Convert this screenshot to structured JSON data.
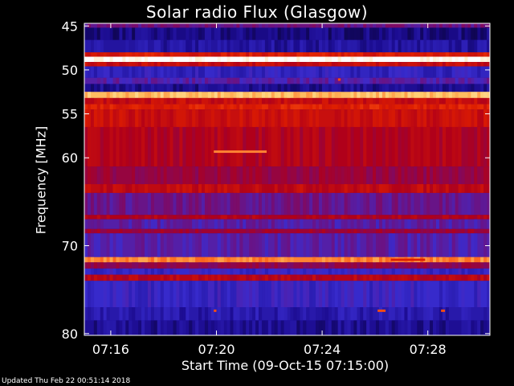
{
  "title": "Solar radio Flux (Glasgow)",
  "footer": "Updated Thu Feb 22 00:51:14 2018",
  "chart_data": {
    "type": "heatmap",
    "title": "Solar radio Flux (Glasgow)",
    "xlabel": "Start Time (09-Oct-15 07:15:00)",
    "ylabel": "Frequency [MHz]",
    "x_range": [
      "07:15:00",
      "07:30:00"
    ],
    "xlim_minutes": [
      15.0,
      30.35
    ],
    "ylim": [
      44.7,
      80.2
    ],
    "y_ticks": [
      45,
      50,
      55,
      60,
      70,
      80
    ],
    "x_ticks": [
      "07:16",
      "07:20",
      "07:24",
      "07:28"
    ],
    "x_tick_minutes": [
      16,
      20,
      24,
      28
    ],
    "colormap": [
      "#000000",
      "#1a0a8c",
      "#3a2dd0",
      "#7a0a6a",
      "#b0001a",
      "#e02000",
      "#ff6a20",
      "#ffd070",
      "#ffffff"
    ],
    "bands": [
      {
        "freq_from": 44.7,
        "freq_to": 45.2,
        "level": 0.35
      },
      {
        "freq_from": 45.2,
        "freq_to": 46.6,
        "level": 0.12
      },
      {
        "freq_from": 46.6,
        "freq_to": 48.0,
        "level": 0.16
      },
      {
        "freq_from": 48.0,
        "freq_to": 48.5,
        "level": 0.6
      },
      {
        "freq_from": 48.5,
        "freq_to": 49.1,
        "level": 1.0
      },
      {
        "freq_from": 49.1,
        "freq_to": 49.6,
        "level": 0.55
      },
      {
        "freq_from": 49.6,
        "freq_to": 50.9,
        "level": 0.22
      },
      {
        "freq_from": 50.9,
        "freq_to": 51.6,
        "level": 0.3
      },
      {
        "freq_from": 51.6,
        "freq_to": 52.5,
        "level": 0.14
      },
      {
        "freq_from": 52.5,
        "freq_to": 53.2,
        "level": 0.85
      },
      {
        "freq_from": 53.2,
        "freq_to": 53.9,
        "level": 0.55
      },
      {
        "freq_from": 53.9,
        "freq_to": 54.5,
        "level": 0.62
      },
      {
        "freq_from": 54.5,
        "freq_to": 56.5,
        "level": 0.56
      },
      {
        "freq_from": 56.5,
        "freq_to": 61.0,
        "level": 0.5
      },
      {
        "freq_from": 61.0,
        "freq_to": 63.0,
        "level": 0.44
      },
      {
        "freq_from": 63.0,
        "freq_to": 64.0,
        "level": 0.54
      },
      {
        "freq_from": 64.0,
        "freq_to": 66.5,
        "level": 0.34
      },
      {
        "freq_from": 66.5,
        "freq_to": 67.0,
        "level": 0.5
      },
      {
        "freq_from": 67.0,
        "freq_to": 68.1,
        "level": 0.3
      },
      {
        "freq_from": 68.1,
        "freq_to": 68.6,
        "level": 0.46
      },
      {
        "freq_from": 68.6,
        "freq_to": 71.3,
        "level": 0.3
      },
      {
        "freq_from": 71.3,
        "freq_to": 71.9,
        "level": 0.78
      },
      {
        "freq_from": 71.9,
        "freq_to": 72.6,
        "level": 0.42
      },
      {
        "freq_from": 72.6,
        "freq_to": 73.3,
        "level": 0.24
      },
      {
        "freq_from": 73.3,
        "freq_to": 74.0,
        "level": 0.52
      },
      {
        "freq_from": 74.0,
        "freq_to": 77.0,
        "level": 0.24
      },
      {
        "freq_from": 77.0,
        "freq_to": 78.5,
        "level": 0.18
      },
      {
        "freq_from": 78.5,
        "freq_to": 80.2,
        "level": 0.14
      }
    ],
    "features": [
      {
        "freq": 59.3,
        "t_from": 19.9,
        "t_to": 21.9,
        "level": 0.78
      },
      {
        "freq": 71.6,
        "t_from": 26.6,
        "t_to": 27.9,
        "level": 0.62
      },
      {
        "freq": 77.4,
        "t_from": 19.9,
        "t_to": 20.0,
        "level": 0.7
      },
      {
        "freq": 77.4,
        "t_from": 26.1,
        "t_to": 26.4,
        "level": 0.7
      },
      {
        "freq": 77.4,
        "t_from": 28.5,
        "t_to": 28.65,
        "level": 0.7
      },
      {
        "freq": 51.1,
        "t_from": 24.6,
        "t_to": 24.7,
        "level": 0.7
      }
    ]
  }
}
